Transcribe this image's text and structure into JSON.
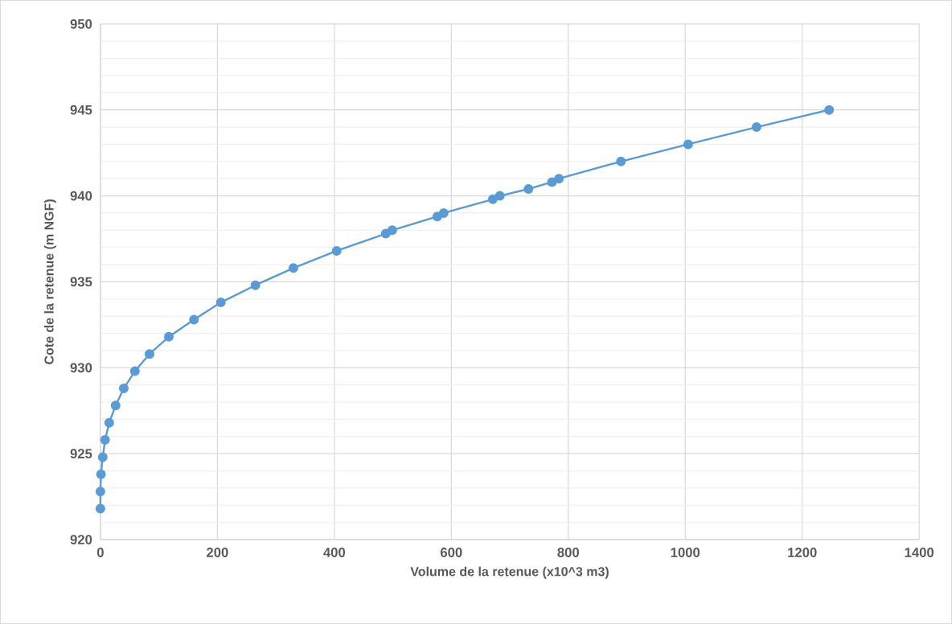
{
  "chart_data": {
    "type": "line",
    "xlabel": "Volume de la retenue (x10^3 m3)",
    "ylabel": "Cote de la retenue (m NGF)",
    "x": [
      0,
      0,
      1,
      4,
      8,
      15,
      26,
      40,
      59,
      84,
      117,
      160,
      206,
      265,
      330,
      404,
      488,
      499,
      576,
      587,
      671,
      683,
      732,
      772,
      784,
      890,
      1005,
      1122,
      1246
    ],
    "series": [
      {
        "color": "#5b9bd5",
        "values": [
          921.8,
          922.8,
          923.8,
          924.8,
          925.8,
          926.8,
          927.8,
          928.8,
          929.8,
          930.8,
          931.8,
          932.8,
          933.8,
          934.8,
          935.8,
          936.8,
          937.8,
          938.0,
          938.8,
          939.0,
          939.8,
          940.0,
          940.4,
          940.8,
          941.0,
          942.0,
          943.0,
          944.0,
          945.0
        ]
      }
    ],
    "xlim": [
      0,
      1400
    ],
    "xticks": [
      0,
      200,
      400,
      600,
      800,
      1000,
      1200,
      1400
    ],
    "ylim": [
      920,
      950
    ],
    "yticks": [
      920,
      925,
      930,
      935,
      940,
      945,
      950
    ],
    "grid": true,
    "marker": "circle",
    "line_style": "solid"
  }
}
